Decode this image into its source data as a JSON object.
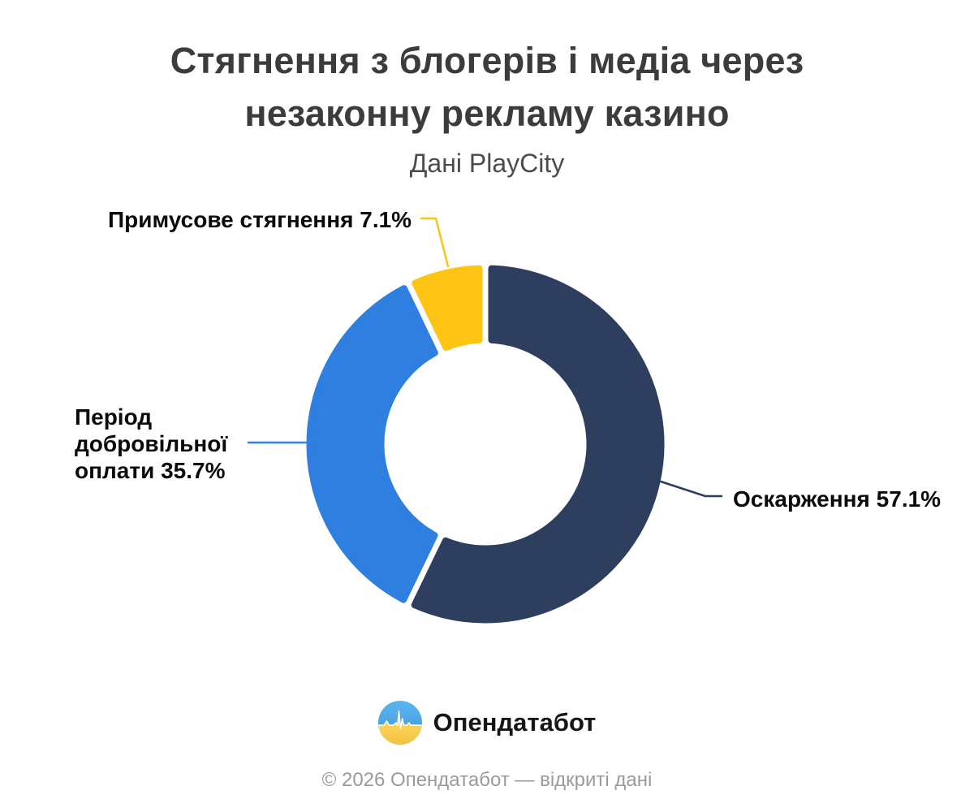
{
  "header": {
    "title_line1": "Стягнення з блогерів і медіа через",
    "title_line2": "незаконну рекламу казино",
    "subtitle": "Дані PlayCity"
  },
  "chart_data": {
    "type": "pie",
    "variant": "donut",
    "title": "Стягнення з блогерів і медіа через незаконну рекламу казино",
    "subtitle": "Дані PlayCity",
    "unit": "%",
    "start_angle_deg": 0,
    "direction": "clockwise",
    "slices": [
      {
        "label": "Оскарження",
        "value": 57.1,
        "color": "#2e3e5e"
      },
      {
        "label": "Період добровільної оплати",
        "value": 35.7,
        "color": "#2e7fdf"
      },
      {
        "label": "Примусове стягнення",
        "value": 7.1,
        "color": "#fdc413"
      }
    ]
  },
  "callouts": {
    "appeals": {
      "text": "Оскарження 57.1%"
    },
    "voluntary": {
      "text": "Період добровільної оплати 35.7%"
    },
    "forced": {
      "text": "Примусове стягнення 7.1%"
    }
  },
  "footer": {
    "brand": "Опендатабот",
    "copyright": "© 2026 Опендатабот — відкриті дані"
  }
}
